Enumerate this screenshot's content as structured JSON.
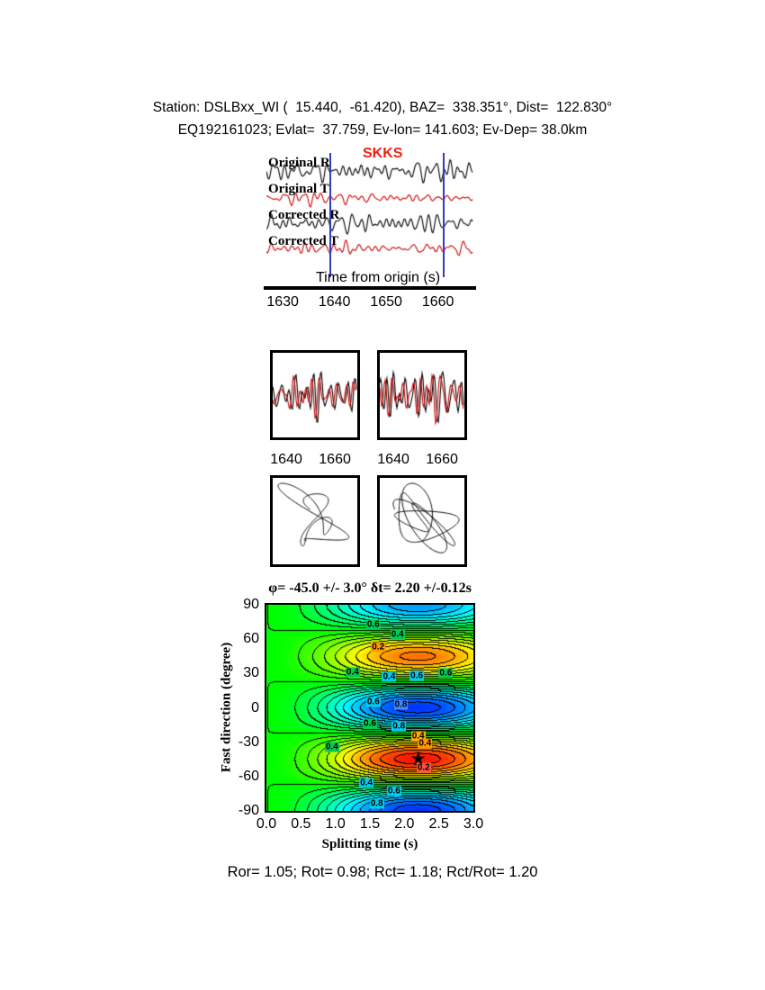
{
  "header": {
    "line1": "Station: DSLBxx_WI (  15.440,  -61.420), BAZ=  338.351°, Dist=  122.830°",
    "line2": "EQ192161023; Evlat=  37.759, Ev-lon= 141.603; Ev-Dep= 38.0km"
  },
  "waveform_panel": {
    "phase_label": "SKKS",
    "phase_color": "#ee2211",
    "trace_labels": [
      "Original R",
      "Original T",
      "Corrected R",
      "Corrected T"
    ],
    "trace_colors": [
      "#000000",
      "#cc0000",
      "#000000",
      "#cc0000"
    ],
    "axis_label": "Time from origin (s)",
    "tick_values": [
      1630,
      1640,
      1650,
      1660
    ],
    "window_lines": [
      1639,
      1661
    ],
    "window_color": "#2f3fbf"
  },
  "zoom_panels": {
    "tick_values": [
      1640,
      1660
    ]
  },
  "contour_panel": {
    "title": "φ= -45.0 +/- 3.0° δt= 2.20 +/-0.12s",
    "ylabel": "Fast direction (degree)",
    "xlabel": "Splitting time (s)",
    "ytick_values": [
      90,
      60,
      30,
      0,
      -30,
      -60,
      -90
    ],
    "xtick_labels": [
      "0.0",
      "0.5",
      "1.0",
      "1.5",
      "2.0",
      "2.5",
      "3.0"
    ],
    "star": {
      "dt": 2.2,
      "phi": -45,
      "glyph": "★"
    },
    "labels": [
      {
        "dt": 1.55,
        "phi": 73,
        "text": "0.6",
        "bg": "#00cc55"
      },
      {
        "dt": 1.9,
        "phi": 64,
        "text": "0.4",
        "bg": "#00cc55"
      },
      {
        "dt": 1.62,
        "phi": 53,
        "text": "0.2",
        "bg": "#ff9900"
      },
      {
        "dt": 1.25,
        "phi": 31,
        "text": "0.4",
        "bg": "#00cc55"
      },
      {
        "dt": 1.78,
        "phi": 27,
        "text": "0.4",
        "bg": "#00ccee"
      },
      {
        "dt": 2.18,
        "phi": 28,
        "text": "0.6",
        "bg": "#00ccee"
      },
      {
        "dt": 2.6,
        "phi": 30,
        "text": "0.6",
        "bg": "#00cc55"
      },
      {
        "dt": 1.55,
        "phi": 5,
        "text": "0.6",
        "bg": "#00ccee"
      },
      {
        "dt": 1.95,
        "phi": 3,
        "text": "0.8",
        "bg": "#4488ff"
      },
      {
        "dt": 1.5,
        "phi": -14,
        "text": "0.6",
        "bg": "#00cc55"
      },
      {
        "dt": 1.92,
        "phi": -16,
        "text": "0.8",
        "bg": "#00ccee"
      },
      {
        "dt": 2.2,
        "phi": -25,
        "text": "0.4",
        "bg": "#ffaa00"
      },
      {
        "dt": 2.3,
        "phi": -31,
        "text": "0.4",
        "bg": "#ff9900"
      },
      {
        "dt": 0.95,
        "phi": -34,
        "text": "0.4",
        "bg": "#00cc55"
      },
      {
        "dt": 2.28,
        "phi": -52,
        "text": "0.2",
        "bg": "#ff5544"
      },
      {
        "dt": 1.45,
        "phi": -66,
        "text": "0.4",
        "bg": "#00ccee"
      },
      {
        "dt": 1.85,
        "phi": -73,
        "text": "0.6",
        "bg": "#00ccee"
      },
      {
        "dt": 1.6,
        "phi": -84,
        "text": "0.8",
        "bg": "#00ccee"
      }
    ]
  },
  "footer": {
    "text": "Ror= 1.05; Rot= 0.98; Rct= 1.18; Rct/Rot= 1.20"
  },
  "chart_data": [
    {
      "type": "line",
      "title": "Radial and transverse waveforms before and after splitting correction",
      "xlabel": "Time from origin (s)",
      "x_range": [
        1626.5,
        1667
      ],
      "xticks": [
        1630,
        1640,
        1650,
        1660
      ],
      "series": [
        {
          "name": "Original R",
          "color": "#000000"
        },
        {
          "name": "Original T",
          "color": "#cc0000"
        },
        {
          "name": "Corrected R",
          "color": "#000000"
        },
        {
          "name": "Corrected T",
          "color": "#cc0000"
        }
      ],
      "annotations": [
        {
          "text": "SKKS",
          "color": "#ee2211"
        }
      ],
      "window_lines_s": [
        1639,
        1661
      ]
    },
    {
      "type": "line",
      "title": "Windowed waveform pairs (left: original R/T, right: corrected R/T)",
      "panels": 2,
      "xticks": [
        1640,
        1660
      ]
    },
    {
      "type": "scatter",
      "title": "Particle motion (left: original, right: corrected)",
      "panels": 2
    },
    {
      "type": "heatmap",
      "title": "φ= -45.0 +/- 3.0° δt= 2.20 +/-0.12s",
      "xlabel": "Splitting time (s)",
      "ylabel": "Fast direction (degree)",
      "xlim": [
        0,
        3
      ],
      "ylim": [
        -90,
        90
      ],
      "xticks": [
        0.0,
        0.5,
        1.0,
        1.5,
        2.0,
        2.5,
        3.0
      ],
      "yticks": [
        90,
        60,
        30,
        0,
        -30,
        -60,
        -90
      ],
      "best_fit": {
        "fast_direction_deg": -45.0,
        "fast_direction_err_deg": 3.0,
        "splitting_time_s": 2.2,
        "splitting_time_err_s": 0.12
      },
      "labeled_contour_levels": [
        0.2,
        0.4,
        0.6,
        0.8
      ],
      "star_marker": {
        "x": 2.2,
        "y": -45
      }
    },
    {
      "type": "table",
      "title": "Quality ratios",
      "values": {
        "Ror": 1.05,
        "Rot": 0.98,
        "Rct": 1.18,
        "Rct/Rot": 1.2
      }
    }
  ]
}
